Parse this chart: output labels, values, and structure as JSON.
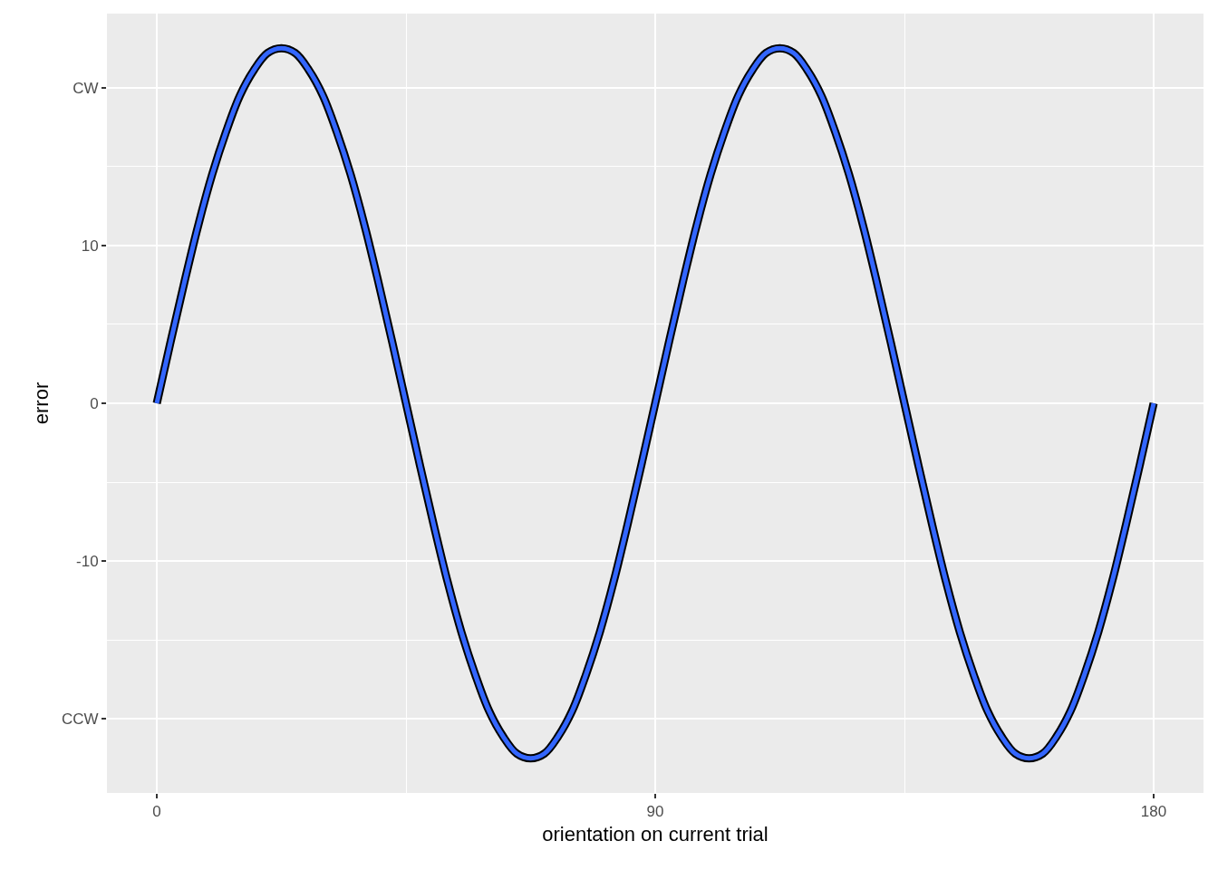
{
  "chart_data": {
    "type": "line",
    "xlabel": "orientation on current trial",
    "ylabel": "error",
    "x": [
      0,
      2.5,
      5,
      7.5,
      10,
      12.5,
      15,
      17.5,
      20,
      22.5,
      25,
      27.5,
      30,
      32.5,
      35,
      37.5,
      40,
      42.5,
      45,
      47.5,
      50,
      52.5,
      55,
      57.5,
      60,
      62.5,
      65,
      67.5,
      70,
      72.5,
      75,
      77.5,
      80,
      82.5,
      85,
      87.5,
      90,
      92.5,
      95,
      97.5,
      100,
      102.5,
      105,
      107.5,
      110,
      112.5,
      115,
      117.5,
      120,
      122.5,
      125,
      127.5,
      130,
      132.5,
      135,
      137.5,
      140,
      142.5,
      145,
      147.5,
      150,
      152.5,
      155,
      157.5,
      160,
      162.5,
      165,
      167.5,
      170,
      172.5,
      175,
      177.5,
      180
    ],
    "series": [
      {
        "color": "#3366ff",
        "values": [
          0,
          3.9,
          7.7,
          11.3,
          14.5,
          17.2,
          19.5,
          21.1,
          22.2,
          22.5,
          22.2,
          21.1,
          19.5,
          17.2,
          14.5,
          11.3,
          7.7,
          3.9,
          0,
          -3.9,
          -7.7,
          -11.3,
          -14.5,
          -17.2,
          -19.5,
          -21.1,
          -22.2,
          -22.5,
          -22.2,
          -21.1,
          -19.5,
          -17.2,
          -14.5,
          -11.3,
          -7.7,
          -3.9,
          0,
          3.9,
          7.7,
          11.3,
          14.5,
          17.2,
          19.5,
          21.1,
          22.2,
          22.5,
          22.2,
          21.1,
          19.5,
          17.2,
          14.5,
          11.3,
          7.7,
          3.9,
          0,
          -3.9,
          -7.7,
          -11.3,
          -14.5,
          -17.2,
          -19.5,
          -21.1,
          -22.2,
          -22.5,
          -22.2,
          -21.1,
          -19.5,
          -17.2,
          -14.5,
          -11.3,
          -7.7,
          -3.9,
          0
        ]
      }
    ],
    "xlim": [
      -9,
      189
    ],
    "xticks": [
      0,
      90,
      180
    ],
    "ylim": [
      -24.7,
      24.7
    ],
    "yticks": [
      {
        "value": -20,
        "label": "CCW"
      },
      -10,
      0,
      10,
      {
        "value": 20,
        "label": "CW"
      }
    ],
    "grid": true
  }
}
